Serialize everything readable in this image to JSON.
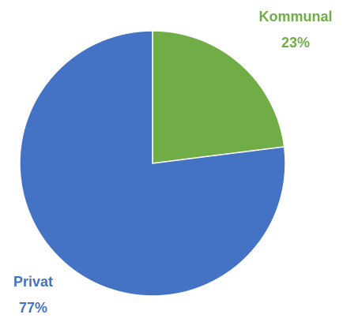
{
  "chart_data": {
    "type": "pie",
    "categories": [
      "Kommunal",
      "Privat"
    ],
    "values": [
      23,
      77
    ],
    "value_labels": [
      "23%",
      "77%"
    ],
    "colors": [
      "#70ad47",
      "#4472c4"
    ]
  }
}
